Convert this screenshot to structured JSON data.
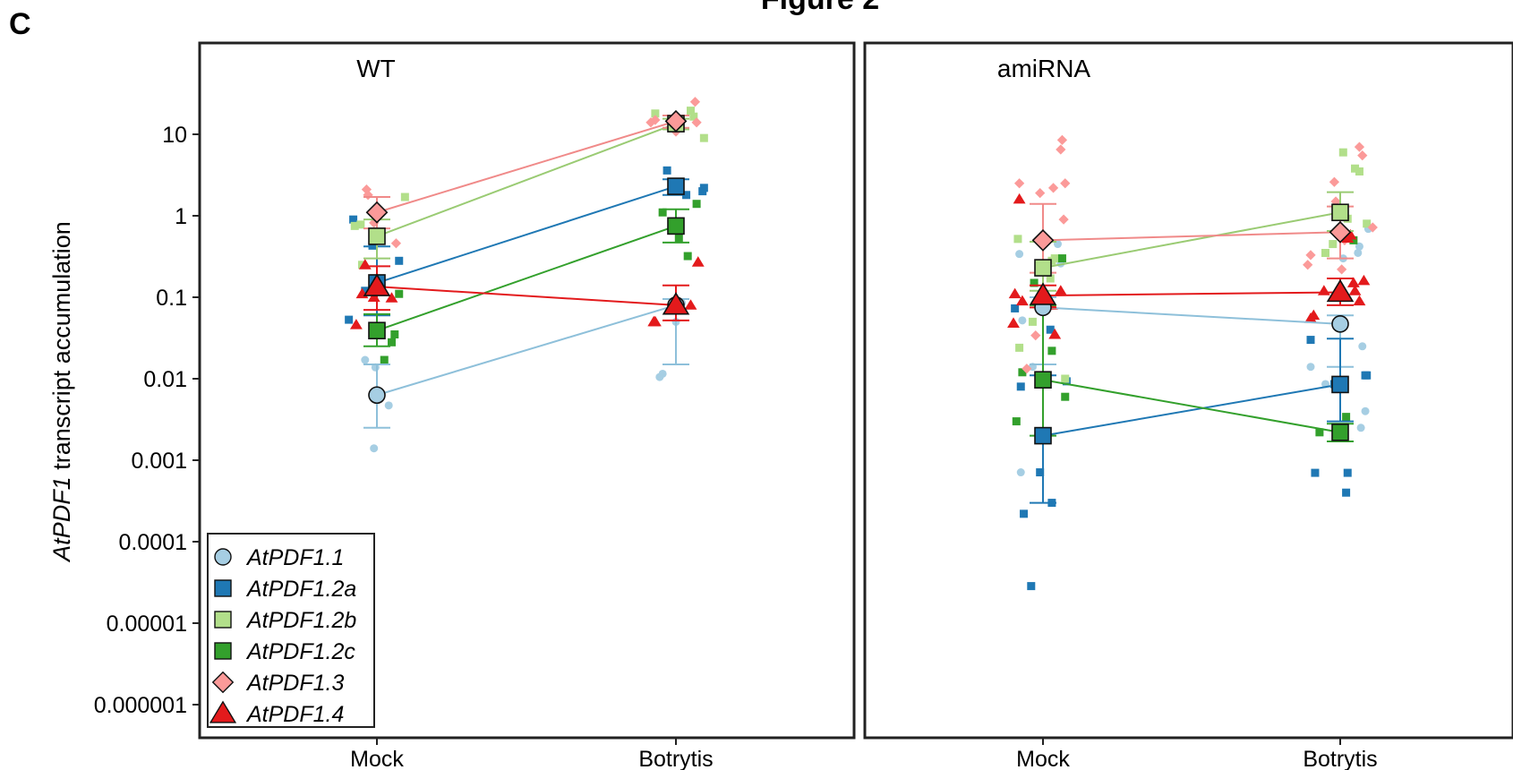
{
  "figure_title": "Figure 2",
  "panel_letter": "C",
  "chart_data": {
    "type": "scatter",
    "ylabel_italic": "AtPDF1",
    "ylabel_rest": " transcript accumulation",
    "yscale": "log",
    "ylim": [
      5e-07,
      100
    ],
    "yticks": [
      10,
      1,
      0.1,
      0.01,
      0.001,
      0.0001,
      1e-05,
      1e-06
    ],
    "ytick_labels": [
      "10",
      "1",
      "0.1",
      "0.01",
      "0.001",
      "0.0001",
      "0.00001",
      "0.000001"
    ],
    "categories": [
      "Mock",
      "Botrytis"
    ],
    "legend_position": "bottom-left",
    "series": [
      {
        "name": "AtPDF1.1",
        "marker": "circle",
        "light": "#a6cee3",
        "edge": "#8ec0da"
      },
      {
        "name": "AtPDF1.2a",
        "marker": "square",
        "light": "#1f78b4",
        "edge": "#1f78b4"
      },
      {
        "name": "AtPDF1.2b",
        "marker": "square",
        "light": "#b2df8a",
        "edge": "#9acb73"
      },
      {
        "name": "AtPDF1.2c",
        "marker": "square",
        "light": "#33a02c",
        "edge": "#33a02c"
      },
      {
        "name": "AtPDF1.3",
        "marker": "diamond",
        "light": "#fb9a99",
        "edge": "#f08a89"
      },
      {
        "name": "AtPDF1.4",
        "marker": "triangle",
        "light": "#e31a1c",
        "edge": "#e31a1c"
      }
    ],
    "panels": [
      {
        "title": "WT",
        "series": [
          {
            "name": "AtPDF1.1",
            "means": [
              0.0063,
              0.08
            ],
            "err_low": [
              0.0025,
              0.015
            ],
            "err_high": [
              0.015,
              0.095
            ],
            "points": [
              [
                [
                  -0.08,
                  0.017
                ],
                [
                  -0.02,
                  0.0014
                ],
                [
                  -0.01,
                  0.0138
                ],
                [
                  0.08,
                  0.0047
                ]
              ],
              [
                [
                  -0.11,
                  0.0105
                ],
                [
                  -0.09,
                  0.0115
                ],
                [
                  0,
                  0.05
                ],
                [
                  0.04,
                  0.085
                ]
              ]
            ]
          },
          {
            "name": "AtPDF1.2a",
            "means": [
              0.15,
              2.3
            ],
            "err_low": [
              0.06,
              1.8
            ],
            "err_high": [
              0.42,
              2.8
            ],
            "points": [
              [
                [
                  -0.19,
                  0.053
                ],
                [
                  -0.16,
                  0.9
                ],
                [
                  -0.08,
                  0.12
                ],
                [
                  -0.03,
                  0.43
                ],
                [
                  0.15,
                  0.28
                ]
              ],
              [
                [
                  -0.06,
                  3.6
                ],
                [
                  0.07,
                  1.8
                ],
                [
                  0.18,
                  2.0
                ],
                [
                  0.19,
                  2.2
                ]
              ]
            ]
          },
          {
            "name": "AtPDF1.2b",
            "means": [
              0.56,
              13.5
            ],
            "err_low": [
              0.3,
              11.5
            ],
            "err_high": [
              0.9,
              15.5
            ],
            "points": [
              [
                [
                  -0.15,
                  0.75
                ],
                [
                  -0.11,
                  0.78
                ],
                [
                  -0.1,
                  0.25
                ],
                [
                  0.19,
                  1.7
                ]
              ],
              [
                [
                  -0.14,
                  18
                ],
                [
                  0.1,
                  19.5
                ],
                [
                  0.12,
                  16.5
                ],
                [
                  0.19,
                  9
                ]
              ]
            ]
          },
          {
            "name": "AtPDF1.2c",
            "means": [
              0.039,
              0.75
            ],
            "err_low": [
              0.025,
              0.47
            ],
            "err_high": [
              0.062,
              1.2
            ],
            "points": [
              [
                [
                  0.1,
                  0.028
                ],
                [
                  0.12,
                  0.035
                ],
                [
                  0.05,
                  0.017
                ],
                [
                  0.15,
                  0.11
                ]
              ],
              [
                [
                  -0.09,
                  1.1
                ],
                [
                  0.02,
                  0.53
                ],
                [
                  0.08,
                  0.32
                ],
                [
                  0.14,
                  1.4
                ]
              ]
            ]
          },
          {
            "name": "AtPDF1.3",
            "means": [
              1.1,
              14.5
            ],
            "err_low": [
              0.7,
              12
            ],
            "err_high": [
              1.7,
              17
            ],
            "points": [
              [
                [
                  -0.07,
                  2.1
                ],
                [
                  -0.06,
                  1.8
                ],
                [
                  -0.02,
                  0.82
                ],
                [
                  0.13,
                  0.46
                ]
              ],
              [
                [
                  -0.17,
                  14
                ],
                [
                  -0.14,
                  15
                ],
                [
                  0,
                  10.8
                ],
                [
                  0.13,
                  25
                ],
                [
                  0.14,
                  14
                ]
              ]
            ]
          },
          {
            "name": "AtPDF1.4",
            "means": [
              0.135,
              0.08
            ],
            "err_low": [
              0.07,
              0.052
            ],
            "err_high": [
              0.24,
              0.14
            ],
            "points": [
              [
                [
                  -0.14,
                  0.046
                ],
                [
                  -0.1,
                  0.11
                ],
                [
                  -0.08,
                  0.25
                ],
                [
                  -0.02,
                  0.1
                ],
                [
                  0.1,
                  0.098
                ]
              ],
              [
                [
                  -0.15,
                  0.05
                ],
                [
                  -0.14,
                  0.05
                ],
                [
                  0.1,
                  0.08
                ],
                [
                  0.15,
                  0.27
                ]
              ]
            ]
          }
        ]
      },
      {
        "title": "amiRNA",
        "series": [
          {
            "name": "AtPDF1.1",
            "means": [
              0.075,
              0.047
            ],
            "err_low": [
              0.015,
              0.014
            ],
            "err_high": [
              0.1,
              0.06
            ],
            "points": [
              [
                [
                  -0.16,
                  0.34
                ],
                [
                  -0.14,
                  0.052
                ],
                [
                  -0.15,
                  0.00071
                ],
                [
                  -0.07,
                  0.014
                ],
                [
                  0.1,
                  0.45
                ],
                [
                  0.11,
                  0.3
                ],
                [
                  0.12,
                  0.26
                ]
              ],
              [
                [
                  -0.2,
                  0.014
                ],
                [
                  -0.1,
                  0.0086
                ],
                [
                  0.02,
                  0.3
                ],
                [
                  0.12,
                  0.35
                ],
                [
                  0.13,
                  0.42
                ],
                [
                  0.15,
                  0.025
                ],
                [
                  0.14,
                  0.0025
                ],
                [
                  0.17,
                  0.004
                ],
                [
                  0.19,
                  0.69
                ]
              ]
            ]
          },
          {
            "name": "AtPDF1.2a",
            "means": [
              0.002,
              0.0085
            ],
            "err_low": [
              0.0003,
              0.003
            ],
            "err_high": [
              0.011,
              0.031
            ],
            "points": [
              [
                [
                  -0.19,
                  0.073
                ],
                [
                  -0.15,
                  0.008
                ],
                [
                  -0.13,
                  0.00022
                ],
                [
                  -0.08,
                  2.85e-05
                ],
                [
                  -0.02,
                  0.00071
                ],
                [
                  0.05,
                  0.04
                ],
                [
                  0.06,
                  0.0003
                ],
                [
                  0.16,
                  0.0093
                ]
              ],
              [
                [
                  -0.2,
                  0.03
                ],
                [
                  -0.17,
                  0.0007
                ],
                [
                  -0.04,
                  0.0086
                ],
                [
                  0.04,
                  0.0004
                ],
                [
                  0.05,
                  0.0007
                ],
                [
                  0.17,
                  0.011
                ],
                [
                  0.18,
                  0.011
                ]
              ]
            ]
          },
          {
            "name": "AtPDF1.2b",
            "means": [
              0.23,
              1.1
            ],
            "err_low": [
              0.12,
              0.65
            ],
            "err_high": [
              0.48,
              1.95
            ],
            "points": [
              [
                [
                  -0.17,
                  0.52
                ],
                [
                  -0.16,
                  0.024
                ],
                [
                  -0.07,
                  0.05
                ],
                [
                  0.05,
                  0.17
                ],
                [
                  0.06,
                  0.28
                ],
                [
                  0.08,
                  0.3
                ],
                [
                  0.15,
                  0.01
                ]
              ],
              [
                [
                  -0.1,
                  0.35
                ],
                [
                  -0.05,
                  0.45
                ],
                [
                  0.02,
                  6
                ],
                [
                  0.05,
                  0.92
                ],
                [
                  0.1,
                  3.8
                ],
                [
                  0.13,
                  3.5
                ],
                [
                  0.18,
                  0.8
                ]
              ]
            ]
          },
          {
            "name": "AtPDF1.2c",
            "means": [
              0.0097,
              0.0022
            ],
            "err_low": [
              0.002,
              0.0017
            ],
            "err_high": [
              0.08,
              0.0028
            ],
            "points": [
              [
                [
                  -0.18,
                  0.003
                ],
                [
                  -0.14,
                  0.012
                ],
                [
                  -0.06,
                  0.15
                ],
                [
                  0.06,
                  0.022
                ],
                [
                  0.13,
                  0.3
                ],
                [
                  0.15,
                  0.006
                ]
              ],
              [
                [
                  -0.14,
                  0.0022
                ],
                [
                  0.04,
                  0.0034
                ],
                [
                  0.09,
                  0.5
                ]
              ]
            ]
          },
          {
            "name": "AtPDF1.3",
            "means": [
              0.5,
              0.63
            ],
            "err_low": [
              0.2,
              0.3
            ],
            "err_high": [
              1.4,
              1.3
            ],
            "points": [
              [
                [
                  -0.16,
                  2.5
                ],
                [
                  -0.02,
                  1.9
                ],
                [
                  -0.11,
                  0.0133
                ],
                [
                  -0.05,
                  0.034
                ],
                [
                  0.07,
                  2.2
                ],
                [
                  0.12,
                  6.5
                ],
                [
                  0.13,
                  8.5
                ],
                [
                  0.15,
                  2.5
                ],
                [
                  0.14,
                  0.9
                ]
              ],
              [
                [
                  -0.22,
                  0.25
                ],
                [
                  -0.2,
                  0.33
                ],
                [
                  -0.04,
                  2.6
                ],
                [
                  -0.03,
                  1.5
                ],
                [
                  0.01,
                  0.22
                ],
                [
                  0.03,
                  0.5
                ],
                [
                  0.13,
                  7
                ],
                [
                  0.15,
                  5.5
                ],
                [
                  0.22,
                  0.72
                ]
              ]
            ]
          },
          {
            "name": "AtPDF1.4",
            "means": [
              0.105,
              0.115
            ],
            "err_low": [
              0.075,
              0.08
            ],
            "err_high": [
              0.14,
              0.17
            ],
            "points": [
              [
                [
                  -0.2,
                  0.048
                ],
                [
                  -0.19,
                  0.11
                ],
                [
                  -0.16,
                  1.6
                ],
                [
                  -0.14,
                  0.09
                ],
                [
                  0.06,
                  0.08
                ],
                [
                  0.12,
                  0.12
                ],
                [
                  0.08,
                  0.035
                ]
              ],
              [
                [
                  -0.2,
                  0.055
                ],
                [
                  -0.18,
                  0.06
                ],
                [
                  -0.11,
                  0.12
                ],
                [
                  0.05,
                  0.53
                ],
                [
                  0.07,
                  0.58
                ],
                [
                  0.09,
                  0.15
                ],
                [
                  0.1,
                  0.12
                ],
                [
                  0.13,
                  0.09
                ],
                [
                  0.16,
                  0.16
                ]
              ]
            ]
          }
        ]
      }
    ]
  }
}
